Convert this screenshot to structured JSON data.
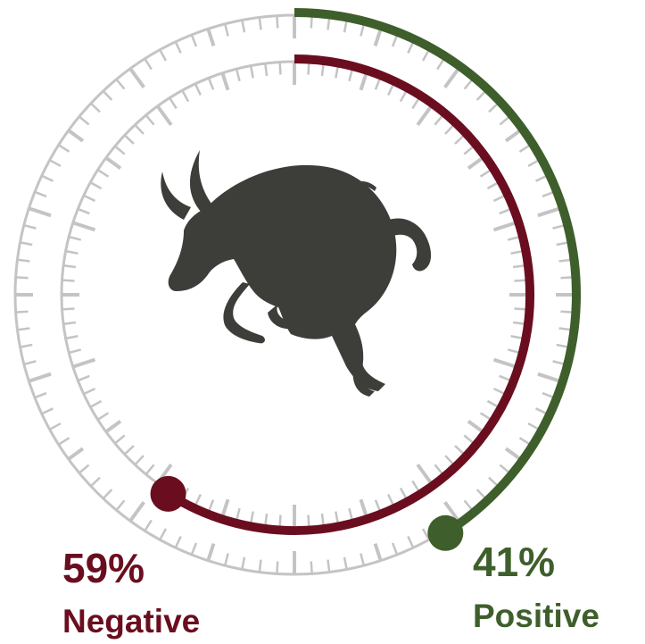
{
  "chart_data": {
    "type": "radial",
    "ylim": [
      0,
      100
    ],
    "series": [
      {
        "name": "Negative",
        "color": "#6a0e1f",
        "values": [
          59
        ],
        "value_labels": [
          "59%"
        ]
      },
      {
        "name": "Positive",
        "color": "#3e5f2b",
        "values": [
          41
        ],
        "value_labels": [
          "41%"
        ]
      }
    ]
  }
}
